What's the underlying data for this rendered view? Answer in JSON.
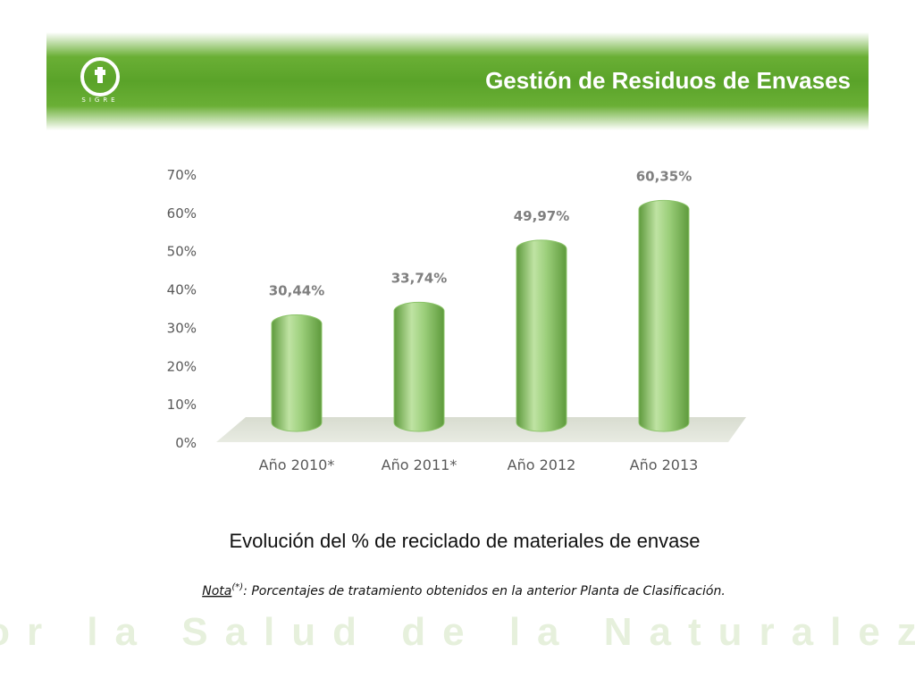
{
  "header": {
    "title": "Gestión  de Residuos de Envases",
    "logo_text": "SIGRE"
  },
  "chart_data": {
    "type": "bar",
    "categories": [
      "Año 2010*",
      "Año 2011*",
      "Año 2012",
      "Año 2013"
    ],
    "values": [
      30.44,
      33.74,
      49.97,
      60.35
    ],
    "value_labels": [
      "30,44%",
      "33,74%",
      "49,97%",
      "60,35%"
    ],
    "color": "#8cc46a",
    "ylim": [
      0,
      70
    ],
    "yticks": [
      {
        "value": 0,
        "label": "0%"
      },
      {
        "value": 10,
        "label": "10%"
      },
      {
        "value": 20,
        "label": "20%"
      },
      {
        "value": 30,
        "label": "30%"
      },
      {
        "value": 40,
        "label": "40%"
      },
      {
        "value": 50,
        "label": "50%"
      },
      {
        "value": 60,
        "label": "60%"
      },
      {
        "value": 70,
        "label": "70%"
      }
    ],
    "grid": false
  },
  "caption": "Evolución del % de reciclado de materiales de envase",
  "note": {
    "label": "Nota",
    "mark": "(*)",
    "text": ": Porcentajes de tratamiento obtenidos en la anterior Planta de Clasificación."
  },
  "footer": "Por la Salud de la Naturaleza"
}
